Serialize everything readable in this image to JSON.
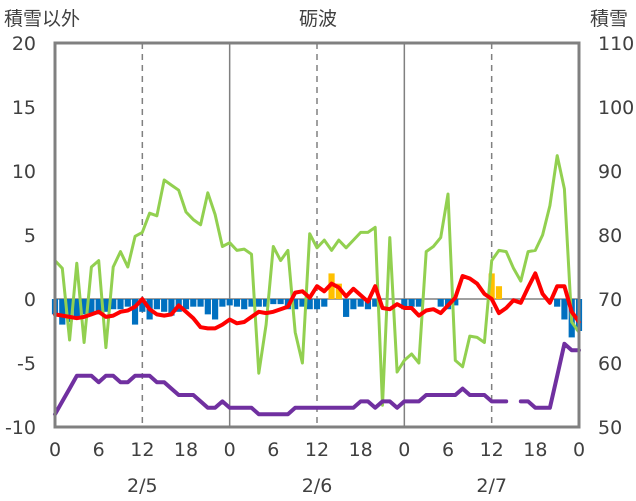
{
  "chart_data": {
    "type": "line",
    "title": "砺波",
    "ylabel_left": "積雪以外",
    "ylabel_right": "積雪",
    "ylim_left": [
      -10,
      20
    ],
    "ylim_right": [
      50,
      110
    ],
    "yticks_left": [
      "20",
      "15",
      "10",
      "5",
      "0",
      "-5",
      "-10"
    ],
    "yticks_right": [
      "110",
      "100",
      "90",
      "80",
      "70",
      "60",
      "50"
    ],
    "xticks": [
      "0",
      "6",
      "12",
      "18",
      "0",
      "6",
      "12",
      "18",
      "0",
      "6",
      "12",
      "18",
      "0"
    ],
    "dates": [
      "2/5",
      "2/6",
      "2/7"
    ],
    "x_hours": [
      0,
      72
    ],
    "grid": "dashed-vertical",
    "colors": {
      "temperature": "#ff0000",
      "humidity_like": "#92d050",
      "snow_depth": "#7030a0",
      "precip_bar_blue": "#0070c0",
      "precip_bar_orange": "#ffc000"
    },
    "series": [
      {
        "key": "red",
        "values": [
          [
            0,
            -1.2
          ],
          [
            1,
            -1.3
          ],
          [
            2,
            -1.4
          ],
          [
            3,
            -1.5
          ],
          [
            4,
            -1.4
          ],
          [
            5,
            -1.2
          ],
          [
            6,
            -1.0
          ],
          [
            7,
            -1.4
          ],
          [
            8,
            -1.3
          ],
          [
            9,
            -1.0
          ],
          [
            10,
            -0.9
          ],
          [
            11,
            -0.6
          ],
          [
            12,
            0.0
          ],
          [
            13,
            -0.8
          ],
          [
            14,
            -1.2
          ],
          [
            15,
            -1.3
          ],
          [
            16,
            -1.2
          ],
          [
            17,
            -0.5
          ],
          [
            18,
            -1.0
          ],
          [
            19,
            -1.5
          ],
          [
            20,
            -2.2
          ],
          [
            21,
            -2.3
          ],
          [
            22,
            -2.3
          ],
          [
            23,
            -2.0
          ],
          [
            24,
            -1.6
          ],
          [
            25,
            -1.9
          ],
          [
            26,
            -1.8
          ],
          [
            27,
            -1.4
          ],
          [
            28,
            -1.0
          ],
          [
            29,
            -1.1
          ],
          [
            30,
            -1.0
          ],
          [
            31,
            -0.8
          ],
          [
            32,
            -0.6
          ],
          [
            33,
            0.5
          ],
          [
            34,
            0.6
          ],
          [
            35,
            0.1
          ],
          [
            36,
            1.0
          ],
          [
            37,
            0.6
          ],
          [
            38,
            1.2
          ],
          [
            39,
            0.9
          ],
          [
            40,
            0.2
          ],
          [
            41,
            0.8
          ],
          [
            42,
            0.3
          ],
          [
            43,
            -0.2
          ],
          [
            44,
            1.0
          ],
          [
            45,
            -0.7
          ],
          [
            46,
            -0.8
          ],
          [
            47,
            -0.4
          ],
          [
            48,
            -0.7
          ],
          [
            49,
            -0.7
          ],
          [
            50,
            -1.3
          ],
          [
            51,
            -0.9
          ],
          [
            52,
            -0.8
          ],
          [
            53,
            -1.1
          ],
          [
            54,
            -0.5
          ],
          [
            55,
            0.1
          ],
          [
            56,
            1.8
          ],
          [
            57,
            1.6
          ],
          [
            58,
            1.2
          ],
          [
            59,
            0.4
          ],
          [
            60,
            0.0
          ],
          [
            61,
            -1.1
          ],
          [
            62,
            -0.7
          ],
          [
            63,
            -0.1
          ],
          [
            64,
            -0.3
          ],
          [
            65,
            0.9
          ],
          [
            66,
            2.0
          ],
          [
            67,
            0.4
          ],
          [
            68,
            -0.3
          ],
          [
            69,
            1.0
          ],
          [
            70,
            1.0
          ],
          [
            71,
            -1.0
          ],
          [
            72,
            -1.8
          ]
        ]
      },
      {
        "key": "green",
        "values": [
          [
            0,
            3.0
          ],
          [
            1,
            2.4
          ],
          [
            2,
            -3.2
          ],
          [
            3,
            2.8
          ],
          [
            4,
            -3.4
          ],
          [
            5,
            2.5
          ],
          [
            6,
            3.0
          ],
          [
            7,
            -3.8
          ],
          [
            8,
            2.5
          ],
          [
            9,
            3.7
          ],
          [
            10,
            2.5
          ],
          [
            11,
            4.9
          ],
          [
            12,
            5.2
          ],
          [
            13,
            6.7
          ],
          [
            14,
            6.5
          ],
          [
            15,
            9.3
          ],
          [
            16,
            8.9
          ],
          [
            17,
            8.5
          ],
          [
            18,
            6.8
          ],
          [
            19,
            6.2
          ],
          [
            20,
            5.8
          ],
          [
            21,
            8.3
          ],
          [
            22,
            6.6
          ],
          [
            23,
            4.1
          ],
          [
            24,
            4.4
          ],
          [
            25,
            3.8
          ],
          [
            26,
            3.9
          ],
          [
            27,
            3.5
          ],
          [
            28,
            -5.8
          ],
          [
            29,
            -2.0
          ],
          [
            30,
            4.1
          ],
          [
            31,
            3.0
          ],
          [
            32,
            3.8
          ],
          [
            33,
            -2.6
          ],
          [
            34,
            -5.0
          ],
          [
            35,
            5.1
          ],
          [
            36,
            4.0
          ],
          [
            37,
            4.6
          ],
          [
            38,
            3.8
          ],
          [
            39,
            4.6
          ],
          [
            40,
            4.0
          ],
          [
            41,
            4.6
          ],
          [
            42,
            5.2
          ],
          [
            43,
            5.2
          ],
          [
            44,
            5.6
          ],
          [
            45,
            -8.3
          ],
          [
            46,
            4.8
          ],
          [
            47,
            -5.7
          ],
          [
            48,
            -4.8
          ],
          [
            49,
            -4.3
          ],
          [
            50,
            -5.0
          ],
          [
            51,
            3.7
          ],
          [
            52,
            4.1
          ],
          [
            53,
            4.8
          ],
          [
            54,
            8.2
          ],
          [
            55,
            -4.8
          ],
          [
            56,
            -5.3
          ],
          [
            57,
            -2.9
          ],
          [
            58,
            -3.0
          ],
          [
            59,
            -3.4
          ],
          [
            60,
            3.0
          ],
          [
            61,
            3.8
          ],
          [
            62,
            3.7
          ],
          [
            63,
            2.4
          ],
          [
            64,
            1.4
          ],
          [
            65,
            3.7
          ],
          [
            66,
            3.8
          ],
          [
            67,
            5.0
          ],
          [
            68,
            7.3
          ],
          [
            69,
            11.2
          ],
          [
            70,
            8.6
          ],
          [
            71,
            -1.8
          ],
          [
            72,
            -2.6
          ]
        ]
      },
      {
        "key": "purple",
        "axis": "right",
        "values": [
          [
            0,
            52
          ],
          [
            1,
            54
          ],
          [
            2,
            56
          ],
          [
            3,
            58
          ],
          [
            4,
            58
          ],
          [
            5,
            58
          ],
          [
            6,
            57
          ],
          [
            7,
            58
          ],
          [
            8,
            58
          ],
          [
            9,
            57
          ],
          [
            10,
            57
          ],
          [
            11,
            58
          ],
          [
            12,
            58
          ],
          [
            13,
            58
          ],
          [
            14,
            57
          ],
          [
            15,
            57
          ],
          [
            16,
            56
          ],
          [
            17,
            55
          ],
          [
            18,
            55
          ],
          [
            19,
            55
          ],
          [
            20,
            54
          ],
          [
            21,
            53
          ],
          [
            22,
            53
          ],
          [
            23,
            54
          ],
          [
            24,
            53
          ],
          [
            25,
            53
          ],
          [
            26,
            53
          ],
          [
            27,
            53
          ],
          [
            28,
            52
          ],
          [
            29,
            52
          ],
          [
            30,
            52
          ],
          [
            31,
            52
          ],
          [
            32,
            52
          ],
          [
            33,
            53
          ],
          [
            34,
            53
          ],
          [
            35,
            53
          ],
          [
            36,
            53
          ],
          [
            37,
            53
          ],
          [
            38,
            53
          ],
          [
            39,
            53
          ],
          [
            40,
            53
          ],
          [
            41,
            53
          ],
          [
            42,
            54
          ],
          [
            43,
            54
          ],
          [
            44,
            53
          ],
          [
            45,
            54
          ],
          [
            46,
            54
          ],
          [
            47,
            53
          ],
          [
            48,
            54
          ],
          [
            49,
            54
          ],
          [
            50,
            54
          ],
          [
            51,
            55
          ],
          [
            52,
            55
          ],
          [
            53,
            55
          ],
          [
            54,
            55
          ],
          [
            55,
            55
          ],
          [
            56,
            56
          ],
          [
            57,
            55
          ],
          [
            58,
            55
          ],
          [
            59,
            55
          ],
          [
            60,
            54
          ],
          [
            61,
            54
          ],
          [
            62,
            54
          ],
          [
            63,
            null
          ],
          [
            64,
            54
          ],
          [
            65,
            54
          ],
          [
            66,
            53
          ],
          [
            67,
            53
          ],
          [
            68,
            53
          ],
          [
            69,
            58
          ],
          [
            70,
            63
          ],
          [
            71,
            62
          ],
          [
            72,
            62
          ]
        ]
      }
    ],
    "bars": [
      {
        "h": 0,
        "v": -1.2,
        "c": "blue"
      },
      {
        "h": 1,
        "v": -2.0,
        "c": "blue"
      },
      {
        "h": 2,
        "v": -1.8,
        "c": "blue"
      },
      {
        "h": 3,
        "v": -1.6,
        "c": "blue"
      },
      {
        "h": 4,
        "v": -1.2,
        "c": "blue"
      },
      {
        "h": 5,
        "v": -1.1,
        "c": "blue"
      },
      {
        "h": 6,
        "v": -1.2,
        "c": "blue"
      },
      {
        "h": 7,
        "v": -1.0,
        "c": "blue"
      },
      {
        "h": 8,
        "v": -0.8,
        "c": "blue"
      },
      {
        "h": 9,
        "v": -0.8,
        "c": "blue"
      },
      {
        "h": 10,
        "v": -0.6,
        "c": "blue"
      },
      {
        "h": 11,
        "v": -2.0,
        "c": "blue"
      },
      {
        "h": 12,
        "v": -1.0,
        "c": "blue"
      },
      {
        "h": 13,
        "v": -1.6,
        "c": "blue"
      },
      {
        "h": 14,
        "v": -0.8,
        "c": "blue"
      },
      {
        "h": 15,
        "v": -1.0,
        "c": "blue"
      },
      {
        "h": 16,
        "v": -1.3,
        "c": "blue"
      },
      {
        "h": 17,
        "v": -1.0,
        "c": "blue"
      },
      {
        "h": 18,
        "v": -0.8,
        "c": "blue"
      },
      {
        "h": 19,
        "v": -0.6,
        "c": "blue"
      },
      {
        "h": 20,
        "v": -0.6,
        "c": "blue"
      },
      {
        "h": 21,
        "v": -1.2,
        "c": "blue"
      },
      {
        "h": 22,
        "v": -1.6,
        "c": "blue"
      },
      {
        "h": 23,
        "v": -0.6,
        "c": "blue"
      },
      {
        "h": 24,
        "v": -0.5,
        "c": "blue"
      },
      {
        "h": 25,
        "v": -0.6,
        "c": "blue"
      },
      {
        "h": 26,
        "v": -0.8,
        "c": "blue"
      },
      {
        "h": 27,
        "v": -0.6,
        "c": "blue"
      },
      {
        "h": 28,
        "v": -0.6,
        "c": "blue"
      },
      {
        "h": 29,
        "v": -0.6,
        "c": "blue"
      },
      {
        "h": 30,
        "v": -0.4,
        "c": "blue"
      },
      {
        "h": 31,
        "v": -0.4,
        "c": "blue"
      },
      {
        "h": 32,
        "v": -0.8,
        "c": "blue"
      },
      {
        "h": 33,
        "v": -0.8,
        "c": "blue"
      },
      {
        "h": 34,
        "v": -0.6,
        "c": "blue"
      },
      {
        "h": 35,
        "v": -0.8,
        "c": "blue"
      },
      {
        "h": 36,
        "v": -0.8,
        "c": "blue"
      },
      {
        "h": 37,
        "v": -0.6,
        "c": "blue"
      },
      {
        "h": 38,
        "v": 2.0,
        "c": "orange"
      },
      {
        "h": 39,
        "v": 1.2,
        "c": "orange"
      },
      {
        "h": 40,
        "v": -1.4,
        "c": "blue"
      },
      {
        "h": 41,
        "v": -0.8,
        "c": "blue"
      },
      {
        "h": 42,
        "v": -0.6,
        "c": "blue"
      },
      {
        "h": 43,
        "v": -0.8,
        "c": "blue"
      },
      {
        "h": 44,
        "v": -0.6,
        "c": "blue"
      },
      {
        "h": 48,
        "v": -0.8,
        "c": "blue"
      },
      {
        "h": 49,
        "v": -0.6,
        "c": "blue"
      },
      {
        "h": 50,
        "v": -0.6,
        "c": "blue"
      },
      {
        "h": 53,
        "v": -0.6,
        "c": "blue"
      },
      {
        "h": 54,
        "v": -0.8,
        "c": "blue"
      },
      {
        "h": 55,
        "v": -0.5,
        "c": "blue"
      },
      {
        "h": 60,
        "v": 2.0,
        "c": "orange"
      },
      {
        "h": 61,
        "v": 1.0,
        "c": "orange"
      },
      {
        "h": 69,
        "v": -0.6,
        "c": "blue"
      },
      {
        "h": 70,
        "v": -1.6,
        "c": "blue"
      },
      {
        "h": 71,
        "v": -3.0,
        "c": "blue"
      },
      {
        "h": 72,
        "v": -2.5,
        "c": "blue"
      }
    ]
  }
}
